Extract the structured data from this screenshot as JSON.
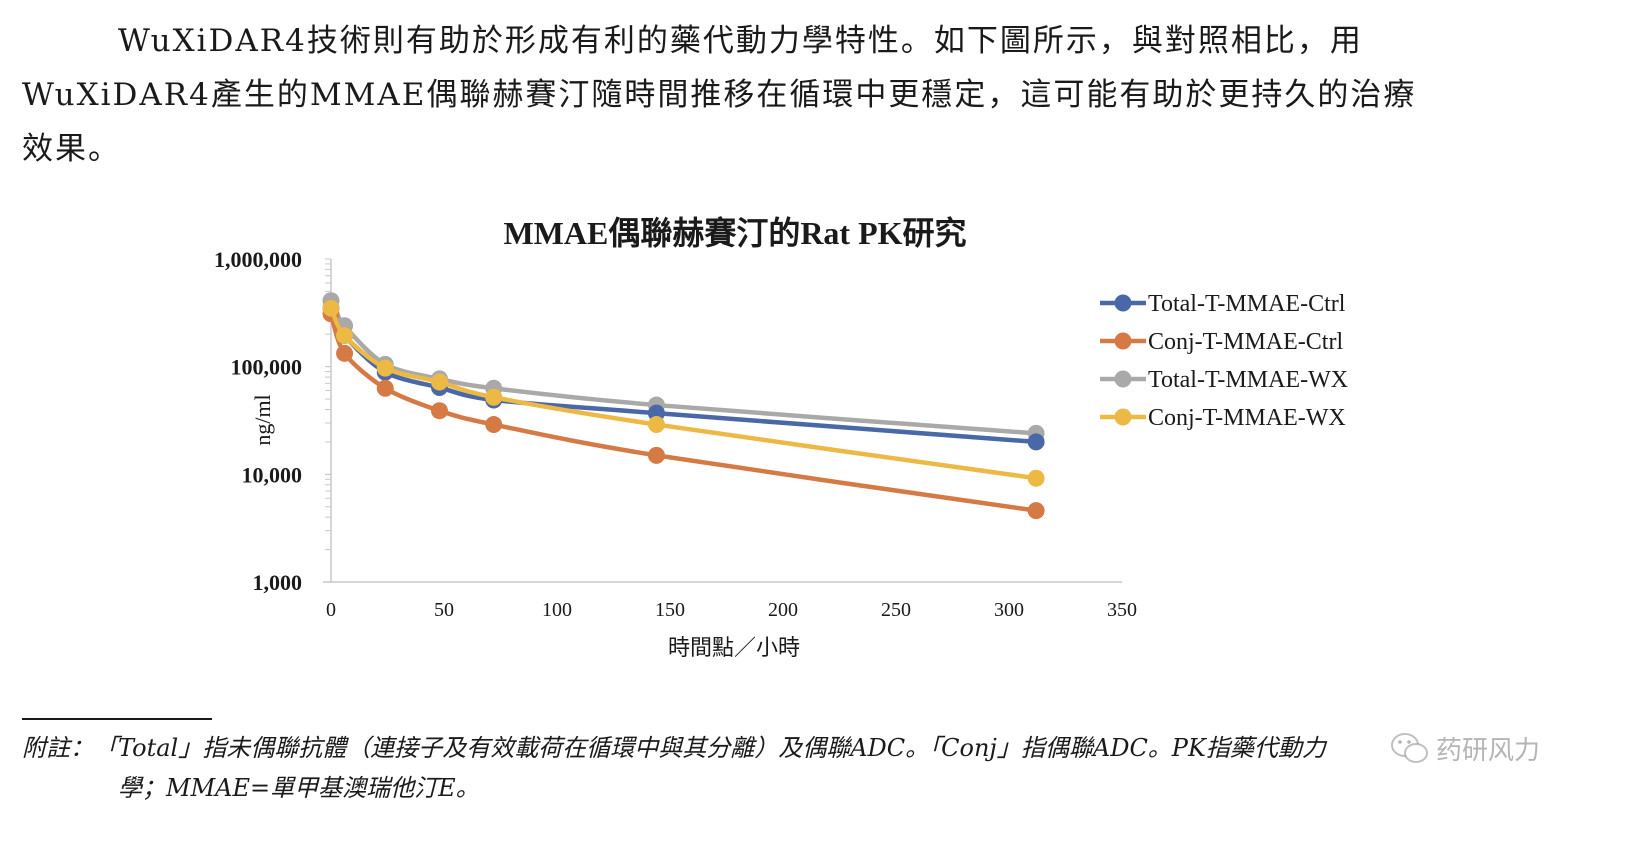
{
  "paragraph": {
    "line1": "WuXiDAR4技術則有助於形成有利的藥代動力學特性。如下圖所示，與對照相比，用",
    "line2": "WuXiDAR4產生的MMAE偶聯赫賽汀隨時間推移在循環中更穩定，這可能有助於更持久的治療",
    "line3": "效果。"
  },
  "chart_data": {
    "type": "line",
    "title": "MMAE偶聯赫賽汀的Rat PK研究",
    "xlabel": "時間點／小時",
    "ylabel": "ng/ml",
    "yscale": "log",
    "ylim": [
      1000,
      1000000
    ],
    "xlim": [
      0,
      350
    ],
    "xticks": [
      0,
      50,
      100,
      150,
      200,
      250,
      300,
      350
    ],
    "xtick_labels": [
      "0",
      "50",
      "100",
      "150",
      "200",
      "250",
      "300",
      "350"
    ],
    "yticks": [
      1000,
      10000,
      100000,
      1000000
    ],
    "ytick_labels": [
      "1,000",
      "10,000",
      "100,000",
      "1,000,000"
    ],
    "legend_position": "right",
    "grid": false,
    "x": [
      0,
      6,
      24,
      48,
      72,
      144,
      312
    ],
    "series": [
      {
        "name": "Total-T-MMAE-Ctrl",
        "color": "#4a67a8",
        "values": [
          350000,
          195000,
          89000,
          64000,
          49000,
          37000,
          20000
        ]
      },
      {
        "name": "Conj-T-MMAE-Ctrl",
        "color": "#d67a45",
        "values": [
          310000,
          133000,
          63000,
          39000,
          29000,
          15000,
          4600
        ]
      },
      {
        "name": "Total-T-MMAE-WX",
        "color": "#a9a9a9",
        "values": [
          410000,
          240000,
          105000,
          77000,
          63000,
          44000,
          24000
        ]
      },
      {
        "name": "Conj-T-MMAE-WX",
        "color": "#ecb945",
        "values": [
          350000,
          195000,
          97000,
          72000,
          52000,
          29000,
          9200
        ]
      }
    ]
  },
  "footnote": {
    "line1": "附註：「Total」指未偶聯抗體（連接子及有效載荷在循環中與其分離）及偶聯ADC。「Conj」指偶聯ADC。PK指藥代動力",
    "line2": "學；MMAE=單甲基澳瑞他汀E。"
  },
  "watermark": {
    "text": "药研风力"
  }
}
